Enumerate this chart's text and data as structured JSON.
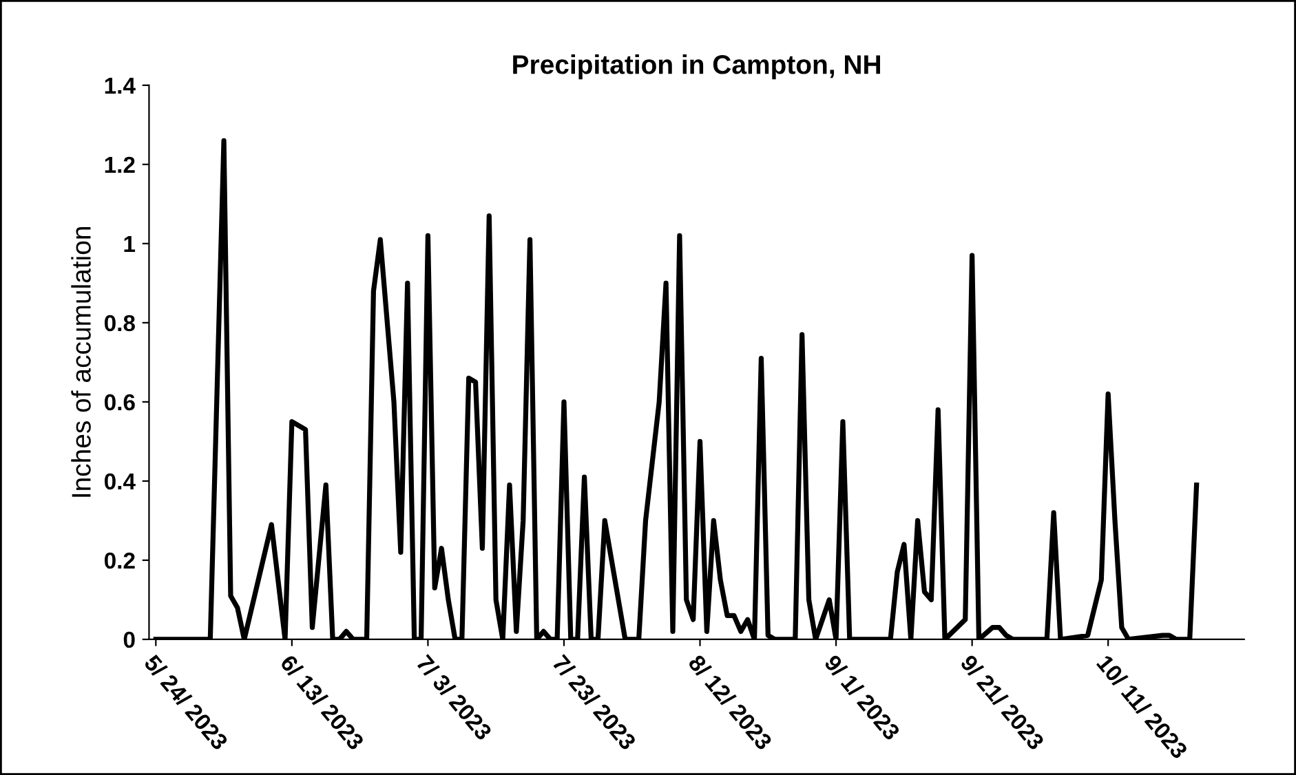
{
  "chart_data": {
    "type": "line",
    "title": "Precipitation in Campton, NH",
    "ylabel": "Inches of accumulation",
    "series": [
      {
        "color": "#000000",
        "x": [
          "2023-05-24",
          "2023-06-01",
          "2023-06-03",
          "2023-06-04",
          "2023-06-05",
          "2023-06-06",
          "2023-06-10",
          "2023-06-12",
          "2023-06-13",
          "2023-06-15",
          "2023-06-16",
          "2023-06-18",
          "2023-06-19",
          "2023-06-20",
          "2023-06-21",
          "2023-06-22",
          "2023-06-24",
          "2023-06-25",
          "2023-06-26",
          "2023-06-28",
          "2023-06-29",
          "2023-06-30",
          "2023-07-01",
          "2023-07-02",
          "2023-07-03",
          "2023-07-04",
          "2023-07-05",
          "2023-07-06",
          "2023-07-07",
          "2023-07-08",
          "2023-07-09",
          "2023-07-10",
          "2023-07-11",
          "2023-07-12",
          "2023-07-13",
          "2023-07-14",
          "2023-07-15",
          "2023-07-16",
          "2023-07-17",
          "2023-07-18",
          "2023-07-19",
          "2023-07-20",
          "2023-07-21",
          "2023-07-22",
          "2023-07-23",
          "2023-07-24",
          "2023-07-25",
          "2023-07-26",
          "2023-07-27",
          "2023-07-28",
          "2023-07-29",
          "2023-07-30",
          "2023-07-31",
          "2023-08-01",
          "2023-08-03",
          "2023-08-04",
          "2023-08-06",
          "2023-08-07",
          "2023-08-08",
          "2023-08-09",
          "2023-08-10",
          "2023-08-11",
          "2023-08-12",
          "2023-08-13",
          "2023-08-14",
          "2023-08-15",
          "2023-08-16",
          "2023-08-17",
          "2023-08-18",
          "2023-08-19",
          "2023-08-20",
          "2023-08-21",
          "2023-08-22",
          "2023-08-23",
          "2023-08-26",
          "2023-08-27",
          "2023-08-28",
          "2023-08-29",
          "2023-08-31",
          "2023-09-01",
          "2023-09-02",
          "2023-09-03",
          "2023-09-09",
          "2023-09-10",
          "2023-09-11",
          "2023-09-12",
          "2023-09-13",
          "2023-09-14",
          "2023-09-15",
          "2023-09-16",
          "2023-09-17",
          "2023-09-20",
          "2023-09-21",
          "2023-09-22",
          "2023-09-24",
          "2023-09-25",
          "2023-09-26",
          "2023-09-27",
          "2023-10-02",
          "2023-10-03",
          "2023-10-04",
          "2023-10-08",
          "2023-10-10",
          "2023-10-11",
          "2023-10-12",
          "2023-10-13",
          "2023-10-14",
          "2023-10-19",
          "2023-10-20",
          "2023-10-21",
          "2023-10-23",
          "2023-10-24"
        ],
        "values": [
          0,
          0,
          1.26,
          0.11,
          0.08,
          0,
          0.29,
          0,
          0.55,
          0.53,
          0.03,
          0.39,
          0,
          0,
          0.02,
          0,
          0,
          0.88,
          1.01,
          0.6,
          0.22,
          0.9,
          0,
          0,
          1.02,
          0.13,
          0.23,
          0.1,
          0,
          0,
          0.66,
          0.65,
          0.23,
          1.07,
          0.1,
          0,
          0.39,
          0.02,
          0.3,
          1.01,
          0,
          0.02,
          0,
          0,
          0.6,
          0,
          0,
          0.41,
          0,
          0,
          0.3,
          0.2,
          0.1,
          0,
          0,
          0.3,
          0.6,
          0.9,
          0.02,
          1.02,
          0.1,
          0.05,
          0.5,
          0.02,
          0.3,
          0.15,
          0.06,
          0.06,
          0.02,
          0.05,
          0,
          0.71,
          0.01,
          0,
          0,
          0.77,
          0.1,
          0,
          0.1,
          0,
          0.55,
          0,
          0,
          0.17,
          0.24,
          0,
          0.3,
          0.12,
          0.1,
          0.58,
          0,
          0.05,
          0.97,
          0,
          0.03,
          0.03,
          0.01,
          0,
          0,
          0.32,
          0,
          0.01,
          0.15,
          0.62,
          0.3,
          0.03,
          0,
          0.01,
          0.01,
          0,
          0,
          0.39
        ]
      }
    ],
    "xlim": [
      "2023-05-23",
      "2023-10-31"
    ],
    "xticks": [
      {
        "value": "2023-05-24",
        "label": "5/ 24/ 2023"
      },
      {
        "value": "2023-06-13",
        "label": "6/ 13/ 2023"
      },
      {
        "value": "2023-07-03",
        "label": "7/ 3/ 2023"
      },
      {
        "value": "2023-07-23",
        "label": "7/ 23/ 2023"
      },
      {
        "value": "2023-08-12",
        "label": "8/ 12/ 2023"
      },
      {
        "value": "2023-09-01",
        "label": "9/ 1/ 2023"
      },
      {
        "value": "2023-09-21",
        "label": "9/ 21/ 2023"
      },
      {
        "value": "2023-10-11",
        "label": "10/ 11/ 2023"
      }
    ],
    "ylim": [
      0,
      1.4
    ],
    "yticks": [
      0,
      0.2,
      0.4,
      0.6,
      0.8,
      1,
      1.2,
      1.4
    ],
    "grid": false,
    "marker": "none",
    "line_style": "solid"
  }
}
